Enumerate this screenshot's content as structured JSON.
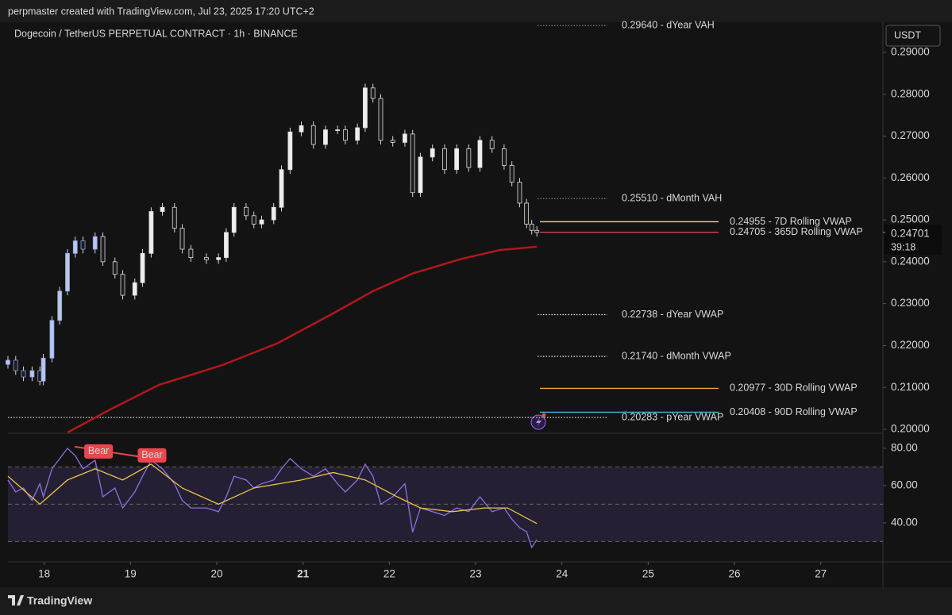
{
  "header": {
    "credit": "perpmaster created with TradingView.com, Jul 23, 2025 17:20 UTC+2"
  },
  "chart_data": [
    {
      "type": "candlestick",
      "title": "Dogecoin / TetherUS PERPETUAL CONTRACT · 1h · BINANCE",
      "currency": "USDT",
      "x": [
        17.58,
        17.67,
        17.76,
        17.86,
        17.95,
        17.99,
        18.09,
        18.18,
        18.27,
        18.36,
        18.45,
        18.59,
        18.68,
        18.82,
        18.91,
        19.05,
        19.14,
        19.24,
        19.37,
        19.51,
        19.6,
        19.7,
        19.88,
        20.02,
        20.11,
        20.2,
        20.34,
        20.43,
        20.52,
        20.66,
        20.75,
        20.85,
        20.98,
        21.12,
        21.26,
        21.4,
        21.49,
        21.63,
        21.72,
        21.81,
        21.9,
        22.04,
        22.18,
        22.27,
        22.36,
        22.5,
        22.64,
        22.78,
        22.92,
        23.05,
        23.19,
        23.33,
        23.42,
        23.51,
        23.59,
        23.65,
        23.71
      ],
      "open": [
        0.2155,
        0.2165,
        0.214,
        0.2125,
        0.214,
        0.2115,
        0.217,
        0.226,
        0.233,
        0.242,
        0.245,
        0.243,
        0.246,
        0.24,
        0.237,
        0.232,
        0.235,
        0.242,
        0.252,
        0.253,
        0.248,
        0.243,
        0.241,
        0.2405,
        0.241,
        0.247,
        0.253,
        0.251,
        0.249,
        0.25,
        0.253,
        0.262,
        0.271,
        0.2725,
        0.268,
        0.2715,
        0.2715,
        0.269,
        0.272,
        0.2815,
        0.279,
        0.269,
        0.2685,
        0.2705,
        0.2565,
        0.265,
        0.267,
        0.262,
        0.267,
        0.2625,
        0.269,
        0.267,
        0.263,
        0.259,
        0.254,
        0.249,
        0.2475
      ],
      "high": [
        0.2175,
        0.2175,
        0.215,
        0.215,
        0.215,
        0.218,
        0.227,
        0.234,
        0.243,
        0.246,
        0.246,
        0.247,
        0.247,
        0.241,
        0.238,
        0.236,
        0.243,
        0.253,
        0.254,
        0.254,
        0.249,
        0.244,
        0.242,
        0.242,
        0.248,
        0.254,
        0.254,
        0.252,
        0.251,
        0.254,
        0.263,
        0.272,
        0.2735,
        0.2735,
        0.2725,
        0.2725,
        0.2725,
        0.273,
        0.2825,
        0.2825,
        0.28,
        0.27,
        0.2715,
        0.2715,
        0.266,
        0.268,
        0.268,
        0.268,
        0.268,
        0.27,
        0.27,
        0.268,
        0.264,
        0.26,
        0.255,
        0.25,
        0.2485
      ],
      "low": [
        0.2145,
        0.213,
        0.2115,
        0.2115,
        0.2105,
        0.2105,
        0.216,
        0.225,
        0.232,
        0.241,
        0.242,
        0.242,
        0.239,
        0.236,
        0.231,
        0.231,
        0.234,
        0.241,
        0.251,
        0.247,
        0.242,
        0.24,
        0.2395,
        0.2395,
        0.24,
        0.246,
        0.25,
        0.248,
        0.248,
        0.249,
        0.252,
        0.261,
        0.27,
        0.267,
        0.267,
        0.2705,
        0.268,
        0.268,
        0.271,
        0.278,
        0.268,
        0.2675,
        0.2675,
        0.2555,
        0.2555,
        0.264,
        0.261,
        0.261,
        0.2615,
        0.2615,
        0.266,
        0.262,
        0.258,
        0.253,
        0.248,
        0.2465,
        0.246
      ],
      "close": [
        0.2165,
        0.214,
        0.2125,
        0.214,
        0.2115,
        0.217,
        0.226,
        0.233,
        0.242,
        0.245,
        0.243,
        0.246,
        0.24,
        0.237,
        0.232,
        0.235,
        0.242,
        0.252,
        0.253,
        0.248,
        0.243,
        0.241,
        0.2405,
        0.241,
        0.247,
        0.253,
        0.251,
        0.249,
        0.25,
        0.253,
        0.262,
        0.271,
        0.2725,
        0.268,
        0.2715,
        0.2715,
        0.269,
        0.272,
        0.2815,
        0.279,
        0.269,
        0.2685,
        0.2705,
        0.2565,
        0.265,
        0.267,
        0.262,
        0.267,
        0.2625,
        0.269,
        0.267,
        0.263,
        0.259,
        0.254,
        0.249,
        0.2475,
        0.247
      ],
      "xlim": [
        17.58,
        27.72
      ],
      "xticks": [
        18,
        19,
        20,
        21,
        22,
        23,
        24,
        25,
        26,
        27
      ],
      "xtick_bold": 21,
      "ylim": [
        0.19924,
        0.29776
      ],
      "yticks": [
        {
          "value": 0.29,
          "label": "0.29000"
        },
        {
          "value": 0.28,
          "label": "0.28000"
        },
        {
          "value": 0.27,
          "label": "0.27000"
        },
        {
          "value": 0.26,
          "label": "0.26000"
        },
        {
          "value": 0.25,
          "label": "0.25000"
        },
        {
          "value": 0.24,
          "label": "0.24000"
        },
        {
          "value": 0.23,
          "label": "0.23000"
        },
        {
          "value": 0.22,
          "label": "0.22000"
        },
        {
          "value": 0.21,
          "label": "0.21000"
        },
        {
          "value": 0.2,
          "label": "0.20000"
        }
      ],
      "last_price": 0.24701,
      "countdown": "39:18",
      "curve": {
        "color": "#b3161b",
        "x": [
          18.27,
          18.78,
          19.33,
          20.06,
          20.71,
          21.35,
          21.81,
          22.27,
          22.82,
          23.28,
          23.71
        ],
        "values": [
          0.19924,
          0.2049,
          0.2106,
          0.2153,
          0.2206,
          0.2277,
          0.233,
          0.2372,
          0.2406,
          0.2428,
          0.2436
        ]
      },
      "levels": [
        {
          "value": 0.2964,
          "label": "0.29640 - dYear VAH",
          "color": "#8c8c8c",
          "style": "dotted"
        },
        {
          "value": 0.2551,
          "label": "0.25510 - dMonth VAH",
          "color": "#8c8c8c",
          "style": "dotted"
        },
        {
          "value": 0.24955,
          "label": "0.24955 - 7D Rolling VWAP",
          "color": "#f2d96b",
          "style": "solid"
        },
        {
          "value": 0.24705,
          "label": "0.24705 - 365D Rolling VWAP",
          "color": "#e5484d",
          "style": "solid"
        },
        {
          "value": 0.22738,
          "label": "0.22738 - dYear VWAP",
          "color": "#e6e6e6",
          "style": "dotted"
        },
        {
          "value": 0.2174,
          "label": "0.21740 - dMonth VWAP",
          "color": "#e6e6e6",
          "style": "dotted"
        },
        {
          "value": 0.20977,
          "label": "0.20977 - 30D Rolling VWAP",
          "color": "#f0a040",
          "style": "solid"
        },
        {
          "value": 0.20408,
          "label": "0.20408 - 90D Rolling VWAP",
          "color": "#3fb8d0",
          "style": "solid"
        },
        {
          "value": 0.20283,
          "label": "0.20283 - pYear VWAP",
          "color": "#e6e6e6",
          "style": "dotted",
          "full_width": true
        }
      ]
    },
    {
      "type": "line",
      "ylim": [
        19.1,
        87.2
      ],
      "yticks": [
        {
          "value": 80,
          "label": "80.00"
        },
        {
          "value": 60,
          "label": "60.00"
        },
        {
          "value": 40,
          "label": "40.00"
        }
      ],
      "band": [
        30,
        70
      ],
      "band_color": "#251f33",
      "levels": [
        70,
        50,
        30
      ],
      "series": [
        {
          "color": "#8f6fe0",
          "x": [
            17.58,
            17.67,
            17.76,
            17.86,
            17.95,
            17.99,
            18.09,
            18.18,
            18.27,
            18.36,
            18.45,
            18.59,
            18.68,
            18.82,
            18.91,
            19.05,
            19.14,
            19.24,
            19.37,
            19.51,
            19.6,
            19.7,
            19.88,
            20.02,
            20.11,
            20.2,
            20.34,
            20.43,
            20.52,
            20.66,
            20.75,
            20.85,
            20.98,
            21.12,
            21.26,
            21.4,
            21.49,
            21.63,
            21.72,
            21.81,
            21.9,
            22.04,
            22.18,
            22.27,
            22.36,
            22.5,
            22.64,
            22.78,
            22.92,
            23.05,
            23.19,
            23.33,
            23.42,
            23.51,
            23.59,
            23.65,
            23.71
          ],
          "values": [
            63,
            56.6,
            58.7,
            52,
            61,
            54,
            69,
            74.5,
            80,
            76,
            69,
            73.6,
            54,
            58.7,
            48,
            56.6,
            65,
            73.6,
            69,
            61,
            52,
            48,
            48,
            46,
            54,
            65,
            63,
            58.7,
            61,
            63,
            69,
            74.5,
            69,
            65,
            69,
            61,
            56.6,
            63,
            71.5,
            65,
            50,
            54,
            61,
            35,
            48,
            46,
            44,
            48,
            46,
            54,
            46,
            48,
            42,
            37.4,
            35.3,
            26.8,
            31
          ]
        },
        {
          "color": "#e8c547",
          "x": [
            17.58,
            17.95,
            18.27,
            18.59,
            18.91,
            19.24,
            19.6,
            20.02,
            20.43,
            20.98,
            21.35,
            21.72,
            22.09,
            22.36,
            22.73,
            23.1,
            23.37,
            23.71
          ],
          "values": [
            65,
            50,
            63,
            69,
            63,
            71.5,
            58.7,
            50,
            58.7,
            63,
            67,
            63,
            54,
            48,
            46,
            48,
            48,
            39.6
          ]
        }
      ],
      "annotations": [
        {
          "text": "Bear",
          "x": 18.63,
          "y": 78.3
        },
        {
          "text": "Bear",
          "x": 19.25,
          "y": 76.2
        }
      ]
    }
  ],
  "footer": {
    "brand": "TradingView"
  }
}
